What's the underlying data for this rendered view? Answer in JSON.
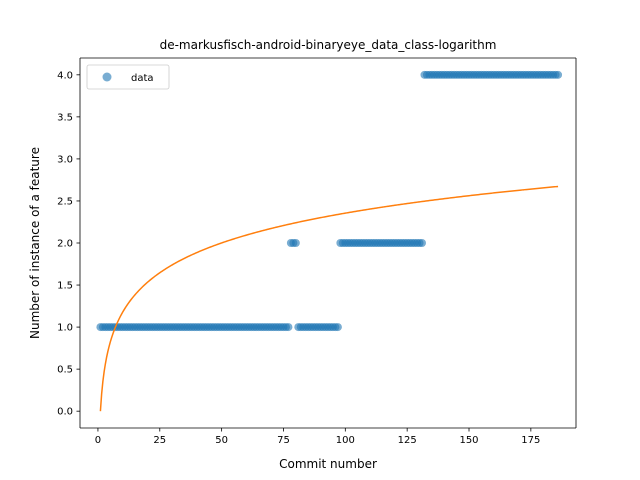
{
  "chart_data": {
    "type": "scatter",
    "title": "de-markusfisch-android-binaryeye_data_class-logarithm",
    "xlabel": "Commit number",
    "ylabel": "Number of instance of a feature",
    "xlim": [
      -7.25,
      193.25
    ],
    "ylim": [
      -0.2,
      4.2
    ],
    "xticks": [
      0,
      25,
      50,
      75,
      100,
      125,
      150,
      175
    ],
    "yticks": [
      0.0,
      0.5,
      1.0,
      1.5,
      2.0,
      2.5,
      3.0,
      3.5,
      4.0
    ],
    "xtick_labels": [
      "0",
      "25",
      "50",
      "75",
      "100",
      "125",
      "150",
      "175"
    ],
    "ytick_labels": [
      "0.0",
      "0.5",
      "1.0",
      "1.5",
      "2.0",
      "2.5",
      "3.0",
      "3.5",
      "4.0"
    ],
    "legend": {
      "position": "upper-left",
      "entries": [
        "data"
      ]
    },
    "grid": false,
    "colors": {
      "scatter": "#1f77b4",
      "fit": "#ff7f0e"
    },
    "scatter_segments": [
      {
        "x_start": 1,
        "x_end": 77,
        "y": 1
      },
      {
        "x_start": 78,
        "x_end": 80,
        "y": 2
      },
      {
        "x_start": 81,
        "x_end": 97,
        "y": 1
      },
      {
        "x_start": 98,
        "x_end": 131,
        "y": 2
      },
      {
        "x_start": 132,
        "x_end": 186,
        "y": 4
      }
    ],
    "fit_curve": {
      "equation": "y = a * ln(x)",
      "a": 0.5114,
      "x_range": [
        1,
        186
      ],
      "x_samples": [
        1,
        2,
        3,
        5,
        8,
        12,
        18,
        25,
        35,
        50,
        65,
        80,
        100,
        120,
        140,
        160,
        186
      ]
    }
  }
}
